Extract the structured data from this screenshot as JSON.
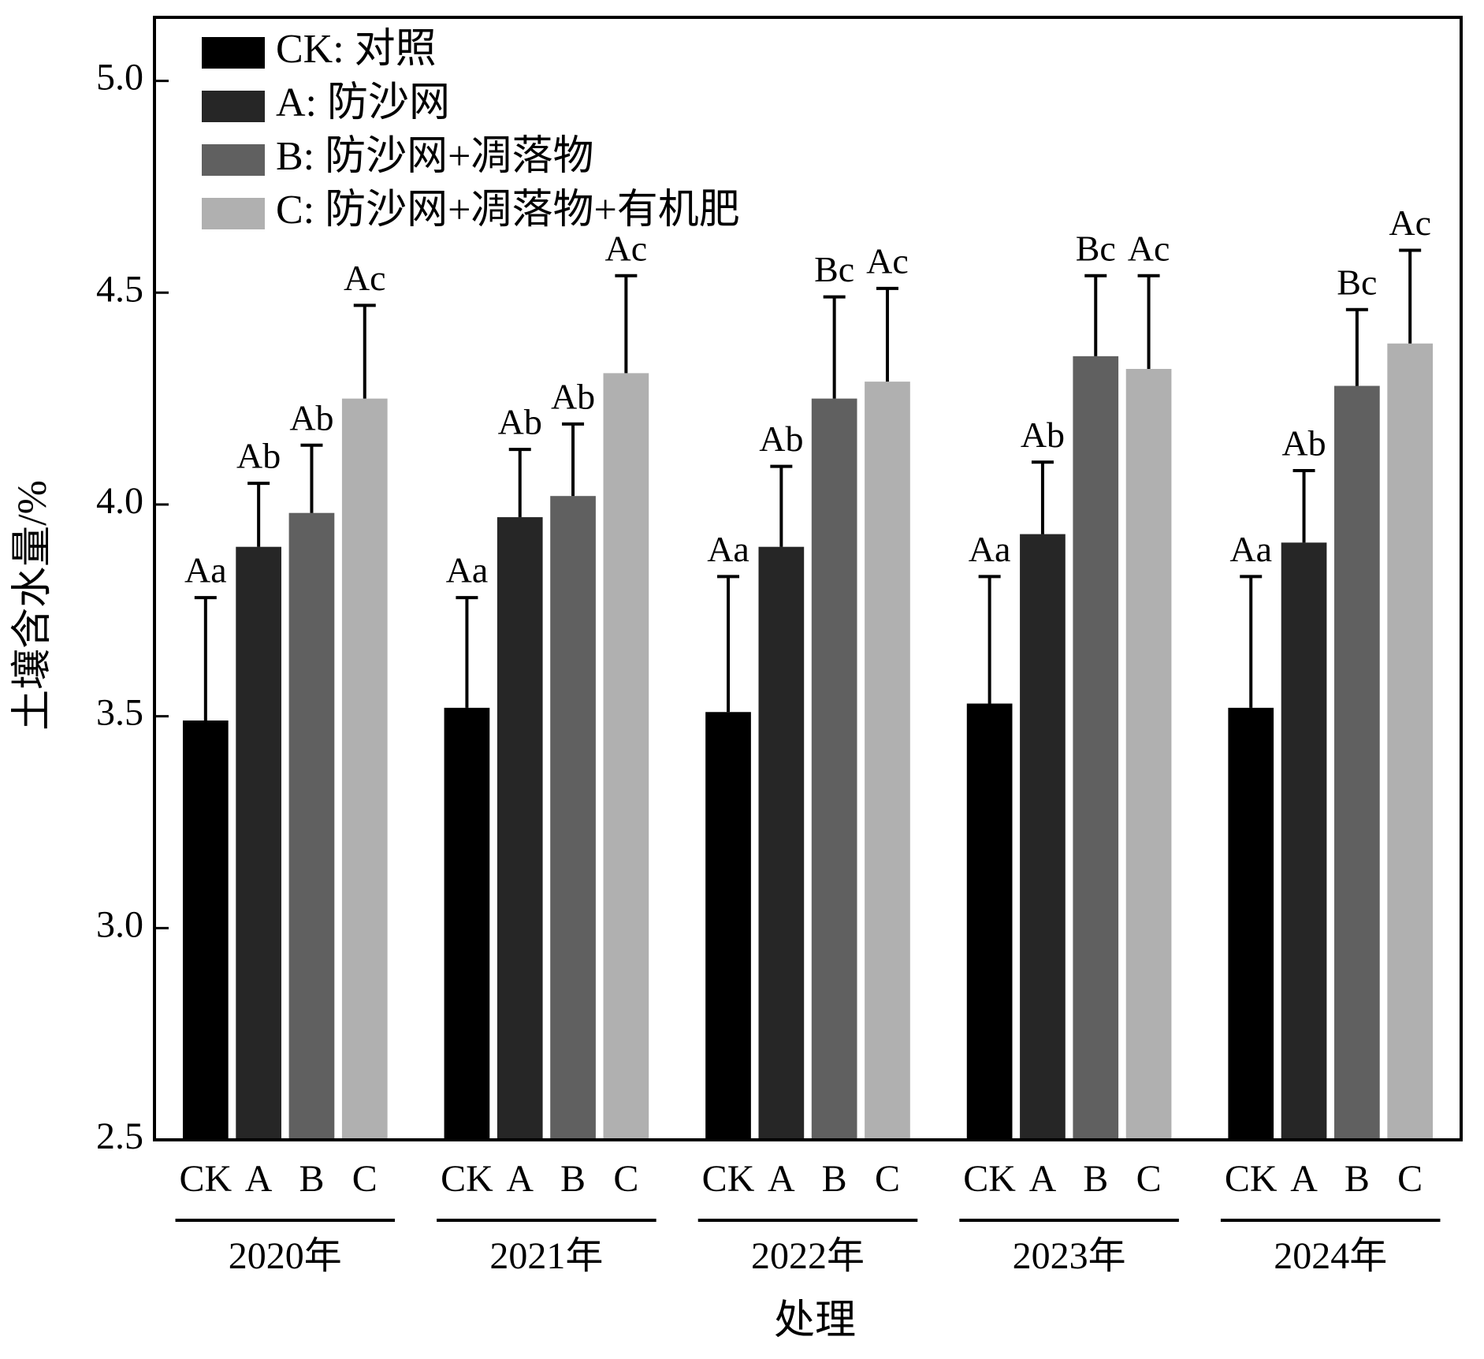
{
  "chart_data": {
    "type": "bar",
    "categories": [
      "2020年",
      "2021年",
      "2022年",
      "2023年",
      "2024年"
    ],
    "subcategories": [
      "CK",
      "A",
      "B",
      "C"
    ],
    "xlabel": "处理",
    "ylabel": "土壤含水量/%",
    "ylim": [
      2.5,
      5.15
    ],
    "yticks": [
      {
        "value": 2.5,
        "label": "2.5"
      },
      {
        "value": 3,
        "label": "3.0"
      },
      {
        "value": 3.5,
        "label": "3.5"
      },
      {
        "value": 4,
        "label": "4.0"
      },
      {
        "value": 4.5,
        "label": "4.5"
      },
      {
        "value": 5,
        "label": "5.0"
      }
    ],
    "legend": "upper left",
    "series": [
      {
        "name": "CK: 对照",
        "color": "#000000",
        "values": [
          3.49,
          3.52,
          3.51,
          3.53,
          3.52
        ],
        "errors": [
          0.29,
          0.26,
          0.32,
          0.3,
          0.31
        ],
        "annotations": [
          "Aa",
          "Aa",
          "Aa",
          "Aa",
          "Aa"
        ]
      },
      {
        "name": "A: 防沙网",
        "color": "#262626",
        "values": [
          3.9,
          3.97,
          3.9,
          3.93,
          3.91
        ],
        "errors": [
          0.15,
          0.16,
          0.19,
          0.17,
          0.17
        ],
        "annotations": [
          "Ab",
          "Ab",
          "Ab",
          "Ab",
          "Ab"
        ]
      },
      {
        "name": "B: 防沙网+凋落物",
        "color": "#606060",
        "values": [
          3.98,
          4.02,
          4.25,
          4.35,
          4.28
        ],
        "errors": [
          0.16,
          0.17,
          0.24,
          0.19,
          0.18
        ],
        "annotations": [
          "Ab",
          "Ab",
          "Bc",
          "Bc",
          "Bc"
        ]
      },
      {
        "name": "C: 防沙网+凋落物+有机肥",
        "color": "#b0b0b0",
        "values": [
          4.25,
          4.31,
          4.29,
          4.32,
          4.38
        ],
        "errors": [
          0.22,
          0.23,
          0.22,
          0.22,
          0.22
        ],
        "annotations": [
          "Ac",
          "Ac",
          "Ac",
          "Ac",
          "Ac"
        ]
      }
    ]
  }
}
